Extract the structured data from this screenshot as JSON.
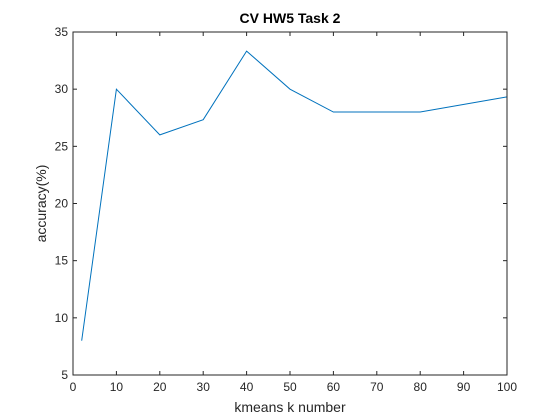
{
  "chart_data": {
    "type": "line",
    "title": "CV HW5 Task 2",
    "xlabel": "kmeans k number",
    "ylabel": "accuracy(%)",
    "xlim": [
      0,
      100
    ],
    "ylim": [
      5,
      35
    ],
    "xticks": [
      0,
      10,
      20,
      30,
      40,
      50,
      60,
      70,
      80,
      90,
      100
    ],
    "yticks": [
      5,
      10,
      15,
      20,
      25,
      30,
      35
    ],
    "grid": false,
    "series": [
      {
        "x": [
          2,
          10,
          20,
          30,
          40,
          50,
          60,
          80,
          100
        ],
        "y": [
          8.0,
          30.0,
          26.0,
          27.33,
          33.33,
          30.0,
          28.0,
          28.0,
          29.33
        ],
        "color": "#0072BD"
      }
    ]
  }
}
